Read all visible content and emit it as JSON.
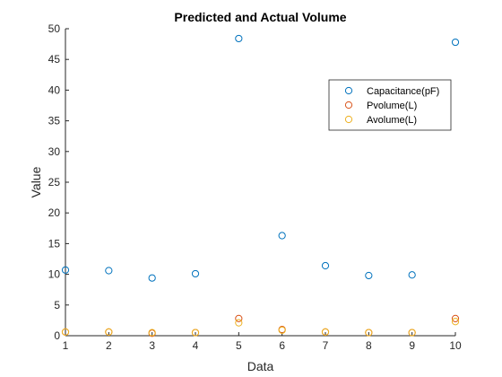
{
  "chart_data": {
    "type": "scatter",
    "title": "Predicted and Actual Volume",
    "xlabel": "Data",
    "ylabel": "Value",
    "xlim": [
      1,
      10
    ],
    "ylim": [
      0,
      50
    ],
    "xticks": [
      "1",
      "2",
      "3",
      "4",
      "5",
      "6",
      "7",
      "8",
      "9",
      "10"
    ],
    "yticks": [
      "0",
      "5",
      "10",
      "15",
      "20",
      "25",
      "30",
      "35",
      "40",
      "45",
      "50"
    ],
    "grid": false,
    "legend_position": "top-right",
    "marker": "open-circle",
    "x": [
      1,
      2,
      3,
      4,
      5,
      6,
      7,
      8,
      9,
      10
    ],
    "series": [
      {
        "name": "Capacitance(pF)",
        "color": "#0072BD",
        "values": [
          10.7,
          10.6,
          9.4,
          10.1,
          48.4,
          16.3,
          11.4,
          9.8,
          9.9,
          47.8
        ]
      },
      {
        "name": "Pvolume(L)",
        "color": "#D95319",
        "values": [
          0.6,
          0.6,
          0.4,
          0.5,
          2.8,
          1.0,
          0.6,
          0.5,
          0.5,
          2.8
        ]
      },
      {
        "name": "Avolume(L)",
        "color": "#EDB120",
        "values": [
          0.6,
          0.6,
          0.5,
          0.5,
          2.1,
          0.9,
          0.6,
          0.5,
          0.5,
          2.3
        ]
      }
    ]
  }
}
